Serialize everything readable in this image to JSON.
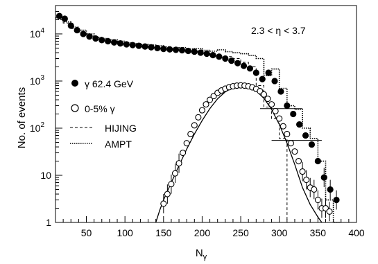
{
  "chart_data": {
    "type": "scatter",
    "title": "",
    "annotation": "2.3 < η  < 3.7",
    "xlabel": "N",
    "xlabel_sub": "γ",
    "ylabel": "No. of events",
    "xlim": [
      10,
      400
    ],
    "ylim": [
      1,
      40000
    ],
    "y_scale": "log",
    "x_ticks": [
      50,
      100,
      150,
      200,
      250,
      300,
      350,
      400
    ],
    "y_ticks": [
      {
        "value": 1,
        "base": "1",
        "exp": ""
      },
      {
        "value": 10,
        "base": "10",
        "exp": ""
      },
      {
        "value": 100,
        "base": "10",
        "exp": "2"
      },
      {
        "value": 1000,
        "base": "10",
        "exp": "3"
      },
      {
        "value": 10000,
        "base": "10",
        "exp": "4"
      }
    ],
    "legend_position": "left-middle",
    "legend": [
      {
        "marker": "filled-circle",
        "label": "γ 62.4 GeV"
      },
      {
        "marker": "open-circle",
        "label": "0-5% γ"
      },
      {
        "marker": "dashed-line",
        "label": "HIJING"
      },
      {
        "marker": "dotted-line",
        "label": "AMPT"
      }
    ],
    "series": [
      {
        "name": "γ 62.4 GeV",
        "marker": "filled-circle",
        "x": [
          15,
          22,
          30,
          38,
          46,
          54,
          62,
          70,
          78,
          86,
          94,
          102,
          110,
          118,
          126,
          134,
          142,
          150,
          158,
          166,
          174,
          182,
          190,
          198,
          206,
          214,
          222,
          230,
          238,
          246,
          254,
          262,
          270,
          278,
          286,
          294,
          302,
          310,
          318,
          326,
          334,
          342,
          350,
          358,
          366,
          374
        ],
        "y": [
          24000,
          21000,
          15000,
          12000,
          10000,
          8800,
          8000,
          7400,
          7000,
          6600,
          6300,
          6000,
          5800,
          5600,
          5400,
          5200,
          5000,
          4800,
          4700,
          4600,
          4500,
          4350,
          4200,
          4000,
          3800,
          3550,
          3300,
          3000,
          2700,
          2400,
          2100,
          1850,
          1500,
          1100,
          1500,
          1000,
          600,
          300,
          200,
          120,
          70,
          45,
          20,
          9,
          5,
          3
        ]
      },
      {
        "name": "0-5% γ",
        "marker": "open-circle",
        "x": [
          150,
          155,
          160,
          165,
          170,
          175,
          180,
          185,
          190,
          195,
          200,
          205,
          210,
          215,
          220,
          225,
          230,
          235,
          240,
          245,
          250,
          255,
          260,
          265,
          270,
          275,
          280,
          285,
          290,
          295,
          300,
          305,
          310,
          315,
          320,
          325,
          330,
          335,
          340,
          345,
          350,
          355,
          360,
          365
        ],
        "y": [
          2.5,
          4,
          6.5,
          11,
          18,
          30,
          48,
          75,
          115,
          170,
          240,
          320,
          400,
          480,
          560,
          630,
          690,
          740,
          775,
          800,
          810,
          800,
          775,
          735,
          680,
          610,
          520,
          420,
          320,
          230,
          160,
          110,
          75,
          48,
          32,
          20,
          12,
          8,
          5.5,
          5,
          3,
          2,
          2,
          1.7
        ]
      },
      {
        "name": "HIJING",
        "style": "dashed-step",
        "x": [
          10,
          20,
          30,
          40,
          50,
          60,
          70,
          80,
          90,
          100,
          110,
          120,
          130,
          140,
          150,
          160,
          170,
          180,
          190,
          200,
          210,
          220,
          230,
          240,
          250,
          260,
          270,
          280,
          290,
          300,
          310
        ],
        "y": [
          20000,
          17000,
          13000,
          11000,
          9000,
          8000,
          7500,
          7000,
          6500,
          6000,
          5800,
          5500,
          5200,
          5000,
          4800,
          4500,
          4600,
          4200,
          4300,
          4000,
          3500,
          3200,
          3300,
          3000,
          2500,
          2000,
          800,
          280,
          160,
          60,
          1
        ]
      },
      {
        "name": "AMPT",
        "style": "dotted-step",
        "x": [
          10,
          20,
          30,
          40,
          50,
          60,
          70,
          80,
          90,
          100,
          110,
          120,
          130,
          140,
          150,
          160,
          170,
          180,
          190,
          200,
          210,
          220,
          230,
          240,
          250,
          260,
          270,
          280,
          290,
          300,
          310,
          320,
          330,
          340,
          350,
          360,
          370
        ],
        "y": [
          22000,
          18000,
          14000,
          12000,
          10000,
          8500,
          8000,
          7500,
          7000,
          6500,
          6200,
          6000,
          5800,
          5600,
          5300,
          5000,
          5100,
          4800,
          4900,
          4500,
          4300,
          4600,
          4200,
          4000,
          3800,
          3500,
          3000,
          1300,
          1800,
          700,
          300,
          250,
          100,
          60,
          20,
          3,
          1
        ]
      },
      {
        "name": "fit",
        "style": "solid-line",
        "x": [
          140,
          145,
          150,
          160,
          170,
          180,
          190,
          200,
          210,
          220,
          230,
          240,
          250,
          260,
          270,
          280,
          290,
          300,
          310,
          320,
          330,
          340,
          350,
          355
        ],
        "y": [
          1,
          1.8,
          3,
          7,
          16,
          36,
          75,
          145,
          260,
          420,
          590,
          730,
          800,
          760,
          620,
          430,
          250,
          120,
          48,
          17,
          5.5,
          2.4,
          1.3,
          1
        ]
      }
    ]
  }
}
